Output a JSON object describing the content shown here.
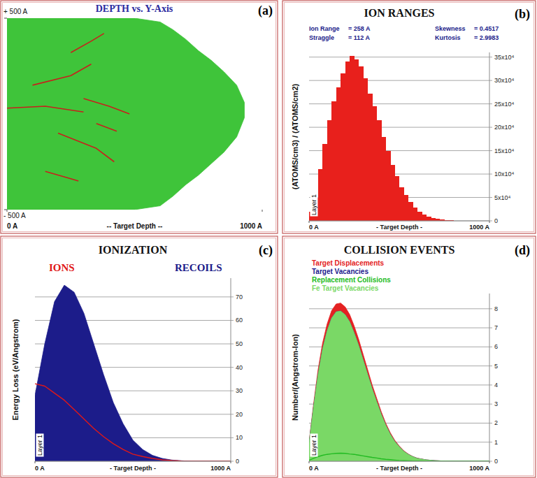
{
  "chart_data": [
    {
      "type": "line",
      "panel_label": "(a)",
      "title": "DEPTH vs. Y-Axis",
      "x_label": "-- Target Depth --",
      "xlim": [
        0,
        1000
      ],
      "ylim": [
        -500,
        500
      ],
      "xticks": [
        {
          "value": 0,
          "label": "0 A"
        },
        {
          "value": 1000,
          "label": "1000 A"
        }
      ],
      "yticks": [
        {
          "value": 500,
          "label": "+ 500 A"
        },
        {
          "value": -500,
          "label": "- 500 A"
        }
      ],
      "grid": false,
      "series": [
        {
          "type": "area",
          "color": "#3fc43a",
          "x": [
            0,
            100,
            200,
            300,
            400,
            500,
            600,
            650,
            700,
            750,
            800,
            850,
            900,
            930
          ],
          "values": [
            500,
            500,
            500,
            500,
            500,
            500,
            480,
            440,
            390,
            330,
            280,
            220,
            150,
            60
          ],
          "lower": [
            -500,
            -500,
            -500,
            -500,
            -500,
            -500,
            -480,
            -430,
            -370,
            -320,
            -260,
            -200,
            -120,
            -20
          ]
        },
        {
          "type": "line",
          "color": "#c8201c",
          "x": [
            0,
            150,
            300,
            300,
            100,
            250,
            330,
            330,
            200,
            350,
            420,
            420,
            250,
            330,
            380,
            380,
            300,
            400,
            480,
            480,
            150,
            280,
            280,
            350,
            430
          ],
          "values": [
            30,
            40,
            10,
            null,
            150,
            200,
            260,
            null,
            -100,
            -180,
            -250,
            null,
            320,
            380,
            420,
            null,
            80,
            40,
            0,
            null,
            -300,
            -350,
            null,
            -50,
            -90
          ]
        }
      ]
    },
    {
      "type": "histogram",
      "panel_label": "(b)",
      "title": "ION RANGES",
      "stats": [
        {
          "label": "Ion Range",
          "value": "= 258 A"
        },
        {
          "label": "Straggle",
          "value": "= 112 A"
        },
        {
          "label": "Skewness",
          "value": "= 0.4517"
        },
        {
          "label": "Kurtosis",
          "value": "= 2.9983"
        }
      ],
      "y_label": "(ATOMS/cm3) / (ATOMS/cm2)",
      "x_label": "- Target Depth -",
      "layer_label": "Layer 1",
      "color": "#e8201c",
      "bins": [
        0,
        25,
        50,
        75,
        100,
        125,
        150,
        175,
        200,
        225,
        250,
        275,
        300,
        325,
        350,
        375,
        400,
        425,
        450,
        475,
        500,
        525,
        550,
        575,
        600,
        625,
        650,
        675,
        700,
        725,
        750,
        775,
        800,
        825,
        850,
        875,
        900,
        925,
        950,
        975,
        1000
      ],
      "values": [
        20000,
        50000,
        110000,
        165000,
        215000,
        255000,
        285000,
        315000,
        340000,
        352000,
        345000,
        330000,
        305000,
        272000,
        245000,
        215000,
        180000,
        150000,
        120000,
        95000,
        72000,
        55000,
        40000,
        28000,
        20000,
        14000,
        9000,
        6000,
        4000,
        2500,
        1500,
        1000,
        500,
        300,
        0,
        0,
        0,
        0,
        0,
        0
      ],
      "xlim": [
        0,
        1000
      ],
      "ylim": [
        0,
        360000
      ],
      "xticks": [
        {
          "value": 0,
          "label": "0 A"
        },
        {
          "value": 1000,
          "label": "1000 A"
        }
      ],
      "yticks": [
        0,
        {
          "value": 50000,
          "label": "5x10⁴"
        },
        {
          "value": 100000,
          "label": "10x10⁴"
        },
        {
          "value": 150000,
          "label": "15x10⁴"
        },
        {
          "value": 200000,
          "label": "20x10⁴"
        },
        {
          "value": 250000,
          "label": "25x10⁴"
        },
        {
          "value": 300000,
          "label": "30x10⁴"
        },
        {
          "value": 350000,
          "label": "35x10⁴"
        }
      ],
      "grid": true
    },
    {
      "type": "area",
      "panel_label": "(c)",
      "title": "IONIZATION",
      "y_label": "Energy Loss (eV/Angstrom)",
      "x_label": "- Target Depth -",
      "layer_label": "Layer 1",
      "x": [
        0,
        50,
        100,
        150,
        200,
        250,
        300,
        350,
        400,
        450,
        500,
        550,
        600,
        650,
        700,
        750,
        800,
        850,
        900,
        950,
        1000
      ],
      "series": [
        {
          "name": "IONS",
          "type": "line",
          "color": "#e01818",
          "values": [
            33,
            32,
            29,
            26,
            22,
            18,
            14,
            10.5,
            7.5,
            5,
            3,
            2,
            1.2,
            0.6,
            0.3,
            0.1,
            0,
            0,
            0,
            0,
            0
          ]
        },
        {
          "name": "RECOILS",
          "type": "area",
          "color": "#1c1c8a",
          "values": [
            28,
            50,
            68,
            75,
            72,
            63,
            50,
            37,
            25,
            16,
            9,
            5,
            2.5,
            1.2,
            0.5,
            0.2,
            0,
            0,
            0,
            0,
            0
          ]
        }
      ],
      "xlim": [
        0,
        1000
      ],
      "ylim": [
        0,
        78
      ],
      "xticks": [
        {
          "value": 0,
          "label": "0 A"
        },
        {
          "value": 1000,
          "label": "1000 A"
        }
      ],
      "yticks": [
        0,
        10,
        20,
        30,
        40,
        50,
        60,
        70
      ],
      "grid": true,
      "legend": "top"
    },
    {
      "type": "area",
      "panel_label": "(d)",
      "title": "COLLISION EVENTS",
      "y_label": "Number/(Angstrom-Ion)",
      "x_label": "- Target Depth -",
      "layer_label": "Layer 1",
      "x": [
        0,
        25,
        50,
        75,
        100,
        125,
        150,
        175,
        200,
        225,
        250,
        275,
        300,
        325,
        350,
        375,
        400,
        425,
        450,
        475,
        500,
        525,
        550,
        575,
        600,
        650,
        700,
        750,
        800,
        900,
        1000
      ],
      "series": [
        {
          "name": "Target Displacements",
          "type": "area",
          "color": "#e42222",
          "values": [
            1.0,
            3.0,
            4.8,
            6.2,
            7.2,
            7.9,
            8.25,
            8.3,
            8.1,
            7.7,
            7.1,
            6.4,
            5.6,
            4.8,
            4.0,
            3.3,
            2.6,
            2.0,
            1.5,
            1.1,
            0.8,
            0.55,
            0.38,
            0.25,
            0.16,
            0.07,
            0.03,
            0.01,
            0,
            0,
            0
          ]
        },
        {
          "name": "Target Vacancies",
          "type": "area",
          "color": "#1a1a8e",
          "values": [
            0.95,
            2.85,
            4.56,
            5.89,
            6.84,
            7.51,
            7.84,
            7.88,
            7.69,
            7.32,
            6.74,
            6.08,
            5.32,
            4.56,
            3.8,
            3.13,
            2.47,
            1.9,
            1.42,
            1.04,
            0.76,
            0.52,
            0.36,
            0.24,
            0.15,
            0.07,
            0.03,
            0.01,
            0,
            0,
            0
          ]
        },
        {
          "name": "Replacement Collisions",
          "type": "line",
          "color": "#22bb22",
          "values": [
            0.05,
            0.15,
            0.24,
            0.31,
            0.36,
            0.39,
            0.41,
            0.42,
            0.41,
            0.38,
            0.36,
            0.32,
            0.28,
            0.24,
            0.2,
            0.17,
            0.13,
            0.1,
            0.08,
            0.06,
            0.04,
            0.03,
            0.02,
            0.01,
            0.01,
            0,
            0,
            0,
            0,
            0,
            0
          ]
        },
        {
          "name": "Fe Target Vacancies",
          "type": "area",
          "color": "#7ad866",
          "values": [
            0.95,
            2.85,
            4.56,
            5.89,
            6.84,
            7.51,
            7.84,
            7.88,
            7.69,
            7.32,
            6.74,
            6.08,
            5.32,
            4.56,
            3.8,
            3.13,
            2.47,
            1.9,
            1.42,
            1.04,
            0.76,
            0.52,
            0.36,
            0.24,
            0.15,
            0.07,
            0.03,
            0.01,
            0,
            0,
            0
          ]
        }
      ],
      "xlim": [
        0,
        1000
      ],
      "ylim": [
        0,
        8.8
      ],
      "xticks": [
        {
          "value": 0,
          "label": "0 A"
        },
        {
          "value": 1000,
          "label": "1000 A"
        }
      ],
      "yticks": [
        0,
        1,
        2,
        3,
        4,
        5,
        6,
        7,
        8
      ],
      "grid": true,
      "legend": "top-left"
    }
  ]
}
